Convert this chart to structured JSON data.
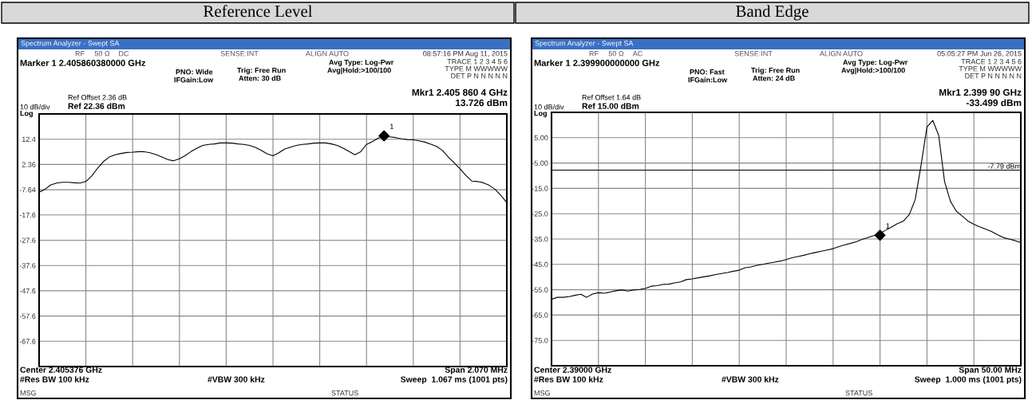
{
  "chart_data": [
    {
      "type": "line",
      "title": "Reference Level",
      "categories": [
        null,
        null,
        null,
        null,
        null,
        null,
        null,
        null,
        null,
        null,
        null,
        null,
        null,
        null,
        null,
        null,
        null,
        null,
        null,
        null,
        null,
        null,
        null,
        null,
        null,
        null,
        null,
        null,
        null,
        null,
        null,
        null,
        null,
        null,
        null,
        null,
        null,
        null,
        null,
        null,
        null,
        null,
        null,
        null,
        null,
        null,
        null,
        null,
        null,
        null,
        null,
        null,
        null,
        null,
        null,
        null,
        null,
        null,
        null,
        null,
        null,
        null,
        null,
        null,
        null,
        null,
        null,
        null,
        null,
        null,
        null,
        null,
        null,
        null,
        null,
        null,
        null,
        null,
        null,
        null,
        null
      ],
      "series": [
        {
          "color": "#000000",
          "values": [
            -8.6,
            -7.5,
            -5.7,
            -5.0,
            -4.7,
            -4.7,
            -4.9,
            -5.0,
            -4.4,
            -2.2,
            0.9,
            3.5,
            5.3,
            6.2,
            6.7,
            7.1,
            7.2,
            7.4,
            7.4,
            7.0,
            6.3,
            5.3,
            4.3,
            3.8,
            4.6,
            5.9,
            7.5,
            8.8,
            9.9,
            10.3,
            10.5,
            10.9,
            10.9,
            10.8,
            10.5,
            10.3,
            9.9,
            9.1,
            7.9,
            6.6,
            5.8,
            7.0,
            8.5,
            9.2,
            9.9,
            10.3,
            10.5,
            10.8,
            10.9,
            10.9,
            10.5,
            9.9,
            8.8,
            7.5,
            6.2,
            7.4,
            10.3,
            11.4,
            12.8,
            13.3,
            13.3,
            13.0,
            12.5,
            12.2,
            12.1,
            11.7,
            11.2,
            10.4,
            9.5,
            7.9,
            5.3,
            3.0,
            0.6,
            -2.0,
            -4.2,
            -4.4,
            -4.9,
            -5.9,
            -7.5,
            -9.9,
            -12.8
          ]
        },
        {
          "type": "scatter",
          "name": "1",
          "color": "#000000",
          "marker": "diamond",
          "values": [
            null,
            null,
            null,
            null,
            null,
            null,
            null,
            null,
            null,
            null,
            null,
            null,
            null,
            null,
            null,
            null,
            null,
            null,
            null,
            null,
            null,
            null,
            null,
            null,
            null,
            null,
            null,
            null,
            null,
            null,
            null,
            null,
            null,
            null,
            null,
            null,
            null,
            null,
            null,
            null,
            null,
            null,
            null,
            null,
            null,
            null,
            null,
            null,
            null,
            null,
            null,
            null,
            null,
            null,
            null,
            null,
            null,
            null,
            null,
            13.7,
            null,
            null,
            null,
            null,
            null,
            null,
            null,
            null,
            null,
            null,
            null,
            null,
            null,
            null,
            null,
            null,
            null,
            null,
            null,
            null,
            null
          ]
        }
      ],
      "ylim": [
        -77.64,
        22.36
      ],
      "yticks": [
        {
          "value": 12.36,
          "label": "12.4"
        },
        2.36,
        -7.64,
        {
          "value": -17.64,
          "label": "-17.6"
        },
        {
          "value": -27.64,
          "label": "-27.6"
        },
        {
          "value": -37.64,
          "label": "-37.6"
        },
        {
          "value": -47.64,
          "label": "-47.6"
        },
        {
          "value": -57.64,
          "label": "-57.6"
        },
        {
          "value": -67.64,
          "label": "-67.6"
        }
      ],
      "grid": true,
      "annotations": [
        "Spectrum Analyzer - Swept SA",
        "RF",
        "50 Ω",
        "DC",
        "SENSE:INT",
        "ALIGN AUTO",
        "08:57:16 PM Aug 11, 2015",
        "Marker 1 2.405860380000 GHz",
        "PNO: Wide",
        "IFGain:Low",
        "Trig: Free Run",
        "Atten: 30 dB",
        "Avg Type: Log-Pwr",
        "Avg|Hold:>100/100",
        "TRACE 1 2 3 4 5 6",
        "TYPE M WWWWW",
        "DET P N N N N N",
        "Ref Offset 2.36 dB",
        "Ref 22.36 dBm",
        "10 dB/div",
        "Log",
        "Mkr1 2.405 860 4 GHz",
        "13.726 dBm",
        "Center 2.405376 GHz",
        "Span 2.070 MHz",
        "#Res BW 100 kHz",
        "#VBW 300 kHz",
        "Sweep  1.067 ms (1001 pts)",
        "MSG",
        "STATUS"
      ]
    },
    {
      "type": "line",
      "title": "Band Edge",
      "categories": [
        null,
        null,
        null,
        null,
        null,
        null,
        null,
        null,
        null,
        null,
        null,
        null,
        null,
        null,
        null,
        null,
        null,
        null,
        null,
        null,
        null,
        null,
        null,
        null,
        null,
        null,
        null,
        null,
        null,
        null,
        null,
        null,
        null,
        null,
        null,
        null,
        null,
        null,
        null,
        null,
        null,
        null,
        null,
        null,
        null,
        null,
        null,
        null,
        null,
        null,
        null,
        null,
        null,
        null,
        null,
        null,
        null,
        null,
        null,
        null,
        null,
        null,
        null,
        null,
        null,
        null,
        null,
        null,
        null,
        null,
        null,
        null,
        null,
        null,
        null,
        null,
        null,
        null,
        null,
        null,
        null
      ],
      "series": [
        {
          "color": "#000000",
          "values": [
            -58.8,
            -58.0,
            -58.0,
            -57.7,
            -57.2,
            -56.8,
            -58.0,
            -56.7,
            -56.2,
            -56.4,
            -55.9,
            -55.4,
            -55.1,
            -55.5,
            -55.1,
            -54.9,
            -54.5,
            -53.6,
            -53.4,
            -52.9,
            -52.8,
            -52.3,
            -51.9,
            -51.0,
            -50.7,
            -50.3,
            -49.9,
            -49.5,
            -49.0,
            -48.6,
            -48.2,
            -47.7,
            -47.3,
            -46.3,
            -46.0,
            -45.4,
            -45.0,
            -44.5,
            -44.1,
            -43.7,
            -43.1,
            -42.4,
            -41.9,
            -41.4,
            -40.8,
            -40.3,
            -39.8,
            -39.3,
            -38.8,
            -38.0,
            -37.3,
            -36.7,
            -36.0,
            -35.1,
            -34.4,
            -33.6,
            -32.7,
            -31.5,
            -30.2,
            -28.9,
            -27.9,
            -25.3,
            -19.4,
            -5.8,
            9.2,
            11.8,
            5.9,
            -12.3,
            -20.1,
            -24.0,
            -25.9,
            -27.9,
            -29.2,
            -30.2,
            -31.1,
            -32.0,
            -33.3,
            -34.4,
            -35.0,
            -35.6,
            -36.4
          ]
        },
        {
          "type": "scatter",
          "name": "1",
          "color": "#000000",
          "marker": "diamond",
          "values": [
            null,
            null,
            null,
            null,
            null,
            null,
            null,
            null,
            null,
            null,
            null,
            null,
            null,
            null,
            null,
            null,
            null,
            null,
            null,
            null,
            null,
            null,
            null,
            null,
            null,
            null,
            null,
            null,
            null,
            null,
            null,
            null,
            null,
            null,
            null,
            null,
            null,
            null,
            null,
            null,
            null,
            null,
            null,
            null,
            null,
            null,
            null,
            null,
            null,
            null,
            null,
            null,
            null,
            null,
            null,
            null,
            -33.5,
            null,
            null,
            null,
            null,
            null,
            null,
            null,
            null,
            null,
            null,
            null,
            null,
            null,
            null,
            null,
            null,
            null,
            null,
            null,
            null,
            null,
            null,
            null,
            null
          ]
        }
      ],
      "ylim": [
        -85,
        15
      ],
      "yticks": [
        {
          "value": 5,
          "label": "5.00"
        },
        {
          "value": -5,
          "label": "-5.00"
        },
        {
          "value": -15,
          "label": "-15.0"
        },
        {
          "value": -25,
          "label": "-25.0"
        },
        {
          "value": -35,
          "label": "-35.0"
        },
        {
          "value": -45,
          "label": "-45.0"
        },
        {
          "value": -55,
          "label": "-55.0"
        },
        {
          "value": -65,
          "label": "-65.0"
        },
        {
          "value": -75,
          "label": "-75.0"
        }
      ],
      "grid": true,
      "ref_lines": [
        {
          "axis": "y",
          "value": -7.79,
          "label": "-7.79 dBm",
          "color": "#000000"
        }
      ],
      "annotations": [
        "Spectrum Analyzer - Swept SA",
        "RF",
        "50 Ω",
        "AC",
        "SENSE:INT",
        "ALIGN AUTO",
        "05:05:27 PM Jun 26, 2015",
        "Marker 1 2.399900000000 GHz",
        "PNO: Fast",
        "IFGain:Low",
        "Trig: Free Run",
        "Atten: 24 dB",
        "Avg Type: Log-Pwr",
        "Avg|Hold:>100/100",
        "TRACE 1 2 3 4 5 6",
        "TYPE M WWWWW",
        "DET P N N N N N",
        "Ref Offset 1.64 dB",
        "Ref 15.00 dBm",
        "10 dB/div",
        "Log",
        "Mkr1 2.399 90 GHz",
        "-33.499 dBm",
        "Center 2.39000 GHz",
        "Span 50.00 MHz",
        "#Res BW 100 kHz",
        "#VBW 300 kHz",
        "Sweep  1.000 ms (1001 pts)",
        "MSG",
        "STATUS"
      ]
    }
  ]
}
